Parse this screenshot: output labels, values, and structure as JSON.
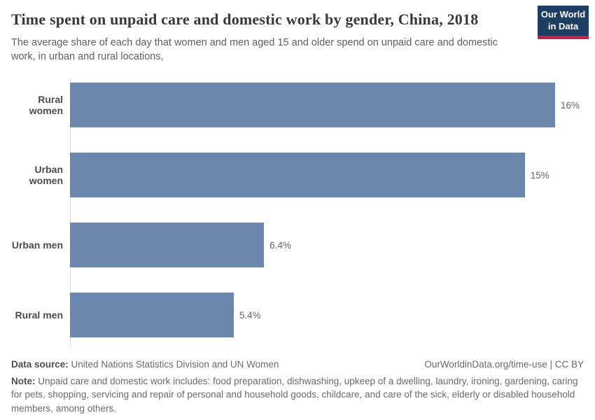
{
  "header": {
    "title": "Time spent on unpaid care and domestic work by gender, China, 2018",
    "subtitle": "The average share of each day that women and men aged 15 and older spend on unpaid care and domestic work, in urban and rural locations,",
    "logo": {
      "line1": "Our World",
      "line2": "in Data"
    }
  },
  "chart_data": {
    "type": "bar",
    "orientation": "horizontal",
    "title": "Time spent on unpaid care and domestic work by gender, China, 2018",
    "categories": [
      "Rural women",
      "Urban women",
      "Urban men",
      "Rural men"
    ],
    "values": [
      16,
      15,
      6.4,
      5.4
    ],
    "value_labels": [
      "16%",
      "15%",
      "6.4%",
      "5.4%"
    ],
    "unit": "%",
    "xlim": [
      0,
      16
    ],
    "grid": false,
    "legend": "none",
    "bar_color": "#6c87ad"
  },
  "footer": {
    "source_label": "Data source:",
    "source_text": "United Nations Statistics Division and UN Women",
    "link_text": "OurWorldinData.org/time-use | CC BY",
    "note_label": "Note:",
    "note_text": "Unpaid care and domestic work includes: food preparation, dishwashing, upkeep of a dwelling, laundry, ironing, gardening, caring for pets, shopping, servicing and repair of personal and household goods, childcare, and care of the sick, elderly or disabled household members, among others."
  },
  "colors": {
    "bar": "#6c87ad",
    "logo_bg": "#1d3d63",
    "logo_accent": "#bb2a3c",
    "axis_line": "#dcdcdc"
  }
}
